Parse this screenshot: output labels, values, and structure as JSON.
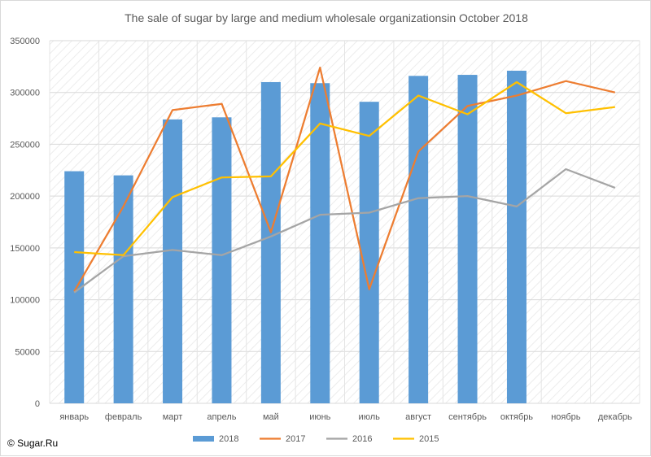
{
  "chart_data": {
    "type": "bar",
    "title": "The sale of sugar by large and medium wholesale organizationsin October 2018",
    "categories": [
      "январь",
      "февраль",
      "март",
      "апрель",
      "май",
      "июнь",
      "июль",
      "август",
      "сентябрь",
      "октябрь",
      "ноябрь",
      "декабрь"
    ],
    "ylim": [
      0,
      350000
    ],
    "yticks": [
      0,
      50000,
      100000,
      150000,
      200000,
      250000,
      300000,
      350000
    ],
    "grid": true,
    "legend_position": "bottom",
    "series": [
      {
        "name": "2018",
        "kind": "bar",
        "color": "#5b9bd5",
        "values": [
          224000,
          220000,
          274000,
          276000,
          310000,
          309000,
          291000,
          316000,
          317000,
          321000,
          null,
          null
        ]
      },
      {
        "name": "2017",
        "kind": "line",
        "color": "#ed7d31",
        "values": [
          108000,
          190000,
          283000,
          289000,
          165000,
          324000,
          110000,
          243000,
          287000,
          297000,
          311000,
          300000
        ]
      },
      {
        "name": "2016",
        "kind": "line",
        "color": "#a5a5a5",
        "values": [
          107000,
          142000,
          148000,
          143000,
          161000,
          182000,
          184000,
          198000,
          200000,
          190000,
          226000,
          208000
        ]
      },
      {
        "name": "2015",
        "kind": "line",
        "color": "#ffc000",
        "values": [
          146000,
          143000,
          199000,
          218000,
          219000,
          270000,
          258000,
          297000,
          279000,
          310000,
          280000,
          286000
        ]
      }
    ]
  },
  "footer": {
    "copyright": "© Sugar.Ru"
  }
}
